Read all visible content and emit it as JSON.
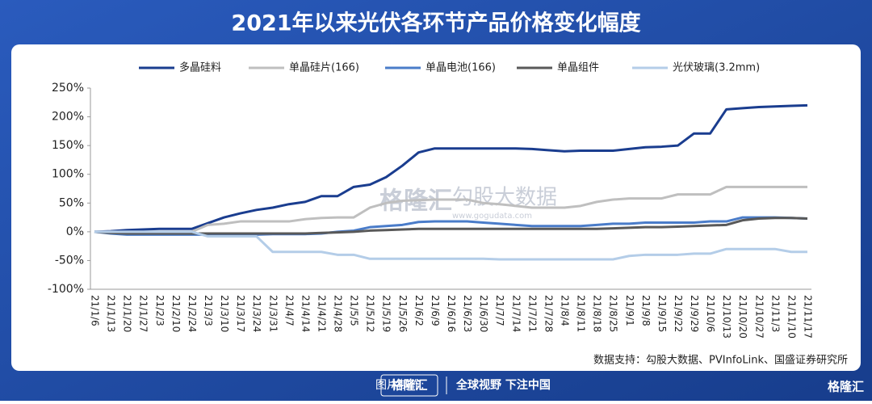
{
  "chart_data": {
    "type": "line",
    "title": "2021年以来光伏各环节产品价格变化幅度",
    "categories": [
      "21/1/6",
      "21/1/13",
      "21/1/20",
      "21/1/27",
      "21/2/3",
      "21/2/10",
      "21/2/24",
      "21/3/3",
      "21/3/10",
      "21/3/17",
      "21/3/24",
      "21/3/31",
      "21/4/7",
      "21/4/14",
      "21/4/21",
      "21/4/28",
      "21/5/5",
      "21/5/12",
      "21/5/19",
      "21/5/26",
      "21/6/2",
      "21/6/9",
      "21/6/16",
      "21/6/23",
      "21/6/30",
      "21/7/7",
      "21/7/14",
      "21/7/21",
      "21/7/28",
      "21/8/4",
      "21/8/11",
      "21/8/18",
      "21/8/25",
      "21/9/1",
      "21/9/8",
      "21/9/15",
      "21/9/22",
      "21/9/29",
      "21/10/6",
      "21/10/13",
      "21/10/20",
      "21/10/27",
      "21/11/3",
      "21/11/10",
      "21/11/17"
    ],
    "series": [
      {
        "name": "多晶硅料",
        "color": "#1a3d8f",
        "values": [
          0,
          1,
          3,
          4,
          5,
          5,
          5,
          15,
          25,
          32,
          38,
          42,
          48,
          52,
          62,
          62,
          78,
          82,
          95,
          115,
          138,
          145,
          145,
          145,
          145,
          145,
          145,
          144,
          142,
          140,
          141,
          141,
          141,
          144,
          147,
          148,
          150,
          171,
          171,
          213,
          215,
          217,
          218,
          219,
          220
        ]
      },
      {
        "name": "单晶硅片(166)",
        "color": "#bfbfbf",
        "values": [
          0,
          0,
          0,
          0,
          0,
          0,
          0,
          12,
          14,
          18,
          18,
          18,
          18,
          22,
          24,
          25,
          25,
          42,
          50,
          54,
          55,
          56,
          56,
          56,
          50,
          48,
          45,
          42,
          42,
          42,
          45,
          52,
          56,
          58,
          58,
          58,
          65,
          65,
          65,
          78,
          78,
          78,
          78,
          78,
          78
        ]
      },
      {
        "name": "单晶电池(166)",
        "color": "#4a7cc9",
        "values": [
          0,
          -3,
          -5,
          -5,
          -5,
          -5,
          -5,
          -5,
          -5,
          -5,
          -5,
          -4,
          -4,
          -4,
          -3,
          0,
          2,
          8,
          10,
          12,
          17,
          18,
          18,
          18,
          16,
          14,
          12,
          10,
          10,
          10,
          10,
          12,
          14,
          14,
          16,
          16,
          16,
          16,
          18,
          18,
          25,
          25,
          25,
          24,
          23
        ]
      },
      {
        "name": "单晶组件",
        "color": "#595959",
        "values": [
          0,
          -2,
          -3,
          -3,
          -3,
          -3,
          -3,
          -3,
          -3,
          -3,
          -3,
          -3,
          -3,
          -3,
          -2,
          -1,
          0,
          2,
          3,
          4,
          5,
          5,
          5,
          5,
          5,
          5,
          5,
          5,
          5,
          5,
          5,
          5,
          6,
          7,
          8,
          8,
          9,
          10,
          11,
          12,
          20,
          23,
          24,
          24,
          23
        ]
      },
      {
        "name": "光伏玻璃(3.2mm)",
        "color": "#b4cde8",
        "values": [
          0,
          0,
          0,
          0,
          0,
          0,
          0,
          -8,
          -8,
          -8,
          -8,
          -35,
          -35,
          -35,
          -35,
          -40,
          -40,
          -47,
          -47,
          -47,
          -47,
          -47,
          -47,
          -47,
          -47,
          -48,
          -48,
          -48,
          -48,
          -48,
          -48,
          -48,
          -48,
          -42,
          -40,
          -40,
          -40,
          -38,
          -38,
          -30,
          -30,
          -30,
          -30,
          -35,
          -35
        ]
      }
    ],
    "ylim": [
      -100,
      250
    ],
    "yticks": [
      {
        "value": -100,
        "label": "-100%"
      },
      {
        "value": -50,
        "label": "-50%"
      },
      {
        "value": 0,
        "label": "0%"
      },
      {
        "value": 50,
        "label": "50%"
      },
      {
        "value": 100,
        "label": "100%"
      },
      {
        "value": 150,
        "label": "150%"
      },
      {
        "value": 200,
        "label": "200%"
      },
      {
        "value": 250,
        "label": "250%"
      }
    ],
    "legend": "top",
    "source": "数据支持：勾股大数据、PVInfoLink、国盛证券研究所"
  },
  "watermarks": [
    "格隆汇",
    "勾股大数据",
    "www.gogudata.com"
  ],
  "footer": {
    "made_by": "图片制作:",
    "brand": "格隆汇",
    "slogan": "全球视野 下注中国",
    "logo": "格隆汇"
  }
}
